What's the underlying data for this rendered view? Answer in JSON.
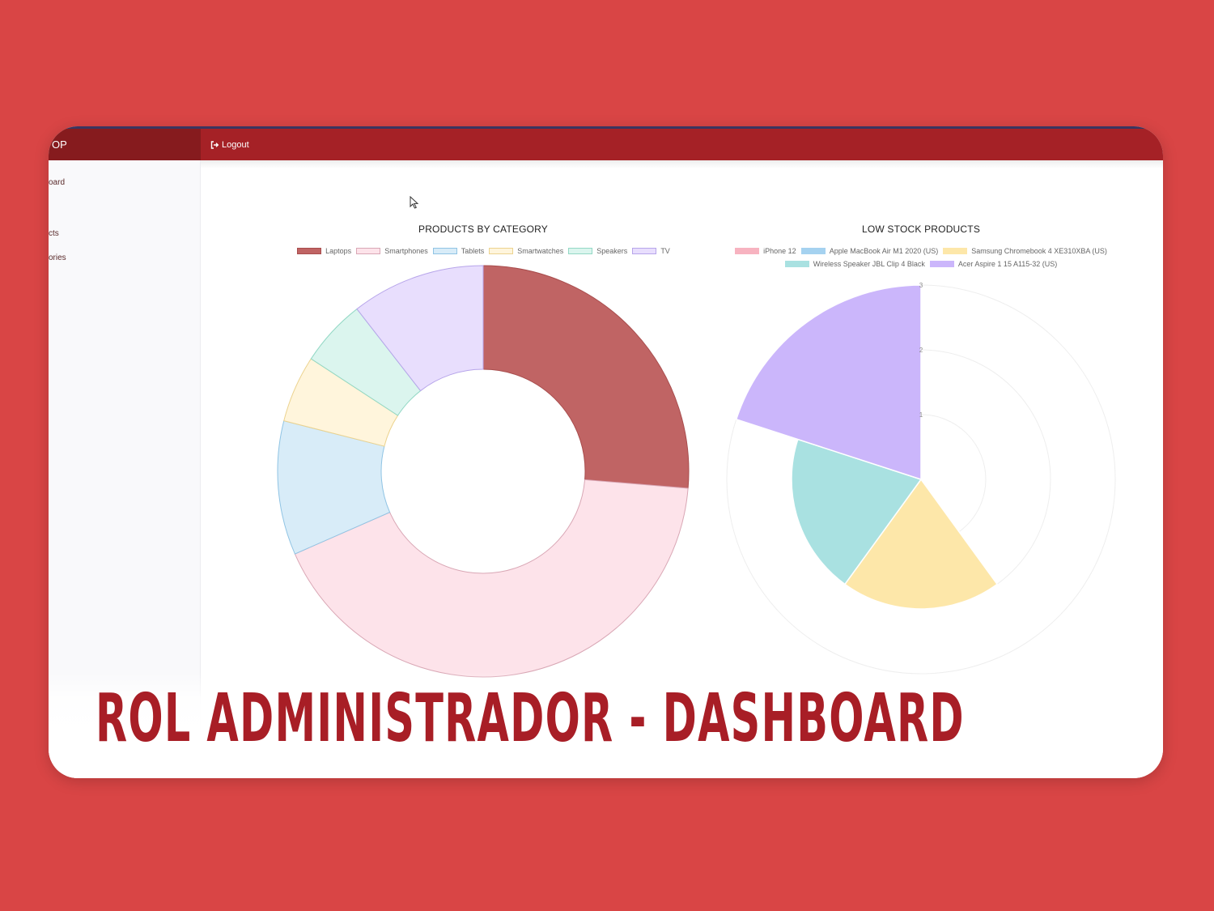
{
  "header": {
    "brand_fragment": "OP",
    "logout_label": "Logout"
  },
  "sidebar": {
    "items": [
      {
        "label": "oard"
      },
      {
        "label": "cts"
      },
      {
        "label": "ories"
      }
    ]
  },
  "caption": {
    "text": "ROL ADMINISTRADOR - DASHBOARD"
  },
  "colors": {
    "background": "#d94545",
    "topbar": "#a52126",
    "brand": "#861b1e",
    "caption": "#a81e26"
  },
  "icons": {
    "logout": "sign-out-icon",
    "cursor": "mouse-cursor-icon"
  },
  "chart_data": [
    {
      "type": "doughnut",
      "title": "PRODUCTS BY CATEGORY",
      "legend_position": "top",
      "categories": [
        "Laptops",
        "Smartphones",
        "Tablets",
        "Smartwatches",
        "Speakers",
        "TV"
      ],
      "values": [
        5,
        8,
        2,
        1,
        1,
        2
      ],
      "colors": [
        "#c06464",
        "#fde3ea",
        "#d8ecf8",
        "#fff5dc",
        "#dbf5ee",
        "#e8defd"
      ],
      "border_colors": [
        "#a84d4d",
        "#d9a7b5",
        "#90c4e4",
        "#ecd38f",
        "#93d8c5",
        "#b7a5ea"
      ]
    },
    {
      "type": "polarArea",
      "title": "LOW STOCK PRODUCTS",
      "legend_position": "top",
      "categories": [
        "iPhone 12",
        "Apple MacBook Air M1 2020 (US)",
        "Samsung Chromebook 4 XE310XBA (US)",
        "Wireless Speaker JBL Clip 4 Black",
        "Acer Aspire 1 15 A115-32 (US)"
      ],
      "values": [
        0,
        0,
        2,
        2,
        3
      ],
      "colors": [
        "#f7b3c0",
        "#a5d2f0",
        "#fde7a9",
        "#a9e1e1",
        "#cbb6fb"
      ],
      "r_ticks": [
        "1",
        "2",
        "3"
      ],
      "r_max": 3
    }
  ]
}
